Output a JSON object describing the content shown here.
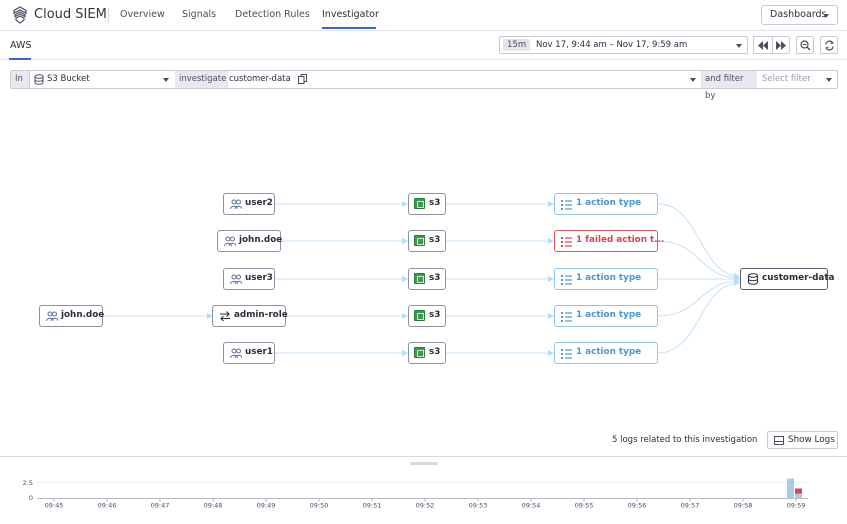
{
  "app": {
    "title": "Cloud SIEM",
    "nav_tabs": [
      "Overview",
      "Signals",
      "Detection Rules",
      "Investigator"
    ],
    "active_tab": "Investigator",
    "dashboards_label": "Dashboards"
  },
  "subnav": {
    "tab_label": "AWS"
  },
  "timeframe": {
    "badge": "15m",
    "range": "Nov 17, 9:44 am – Nov 17, 9:59 am"
  },
  "filter": {
    "in_label": "In",
    "entity_type": "S3 Bucket",
    "investigate_label": "investigate",
    "entity_value": "customer-data",
    "and_filter_label": "and filter by",
    "filter_placeholder": "Select filter"
  },
  "graph": {
    "root": {
      "label": "john.doe",
      "icon": "users-icon"
    },
    "role": {
      "label": "admin-role",
      "icon": "swap-icon"
    },
    "users": [
      {
        "label": "user2",
        "icon": "users-icon"
      },
      {
        "label": "john.doe",
        "icon": "users-icon"
      },
      {
        "label": "user3",
        "icon": "users-icon"
      },
      {
        "label": "admin-role",
        "icon": "swap-icon"
      },
      {
        "label": "user1",
        "icon": "users-icon"
      }
    ],
    "services": [
      "s3",
      "s3",
      "s3",
      "s3",
      "s3"
    ],
    "actions": [
      {
        "label": "1 action type",
        "status": "ok"
      },
      {
        "label": "1 failed action t...",
        "status": "failed"
      },
      {
        "label": "1 action type",
        "status": "ok"
      },
      {
        "label": "1 action type",
        "status": "ok"
      },
      {
        "label": "1 action type",
        "status": "ok"
      }
    ],
    "target": {
      "label": "customer-data",
      "icon": "database-icon"
    }
  },
  "logs": {
    "count_text": "5 logs related to this investigation",
    "show_logs_label": "Show Logs"
  },
  "timeline": {
    "y_ticks": [
      "2.5",
      "0"
    ],
    "x_ticks": [
      "09:45",
      "09:46",
      "09:47",
      "09:48",
      "09:49",
      "09:50",
      "09:51",
      "09:52",
      "09:53",
      "09:54",
      "09:55",
      "09:56",
      "09:57",
      "09:58",
      "09:59"
    ],
    "bars": [
      {
        "time": "09:59",
        "ok_count": 4,
        "failed_count": 1
      }
    ],
    "colors": {
      "ok": "#a9cbe8",
      "failed": "#d9434d"
    }
  },
  "colors": {
    "accent": "#3b66c7",
    "action_border": "#8fc3ea",
    "failed_border": "#e4555e",
    "s3_green": "#3f9a4e"
  }
}
